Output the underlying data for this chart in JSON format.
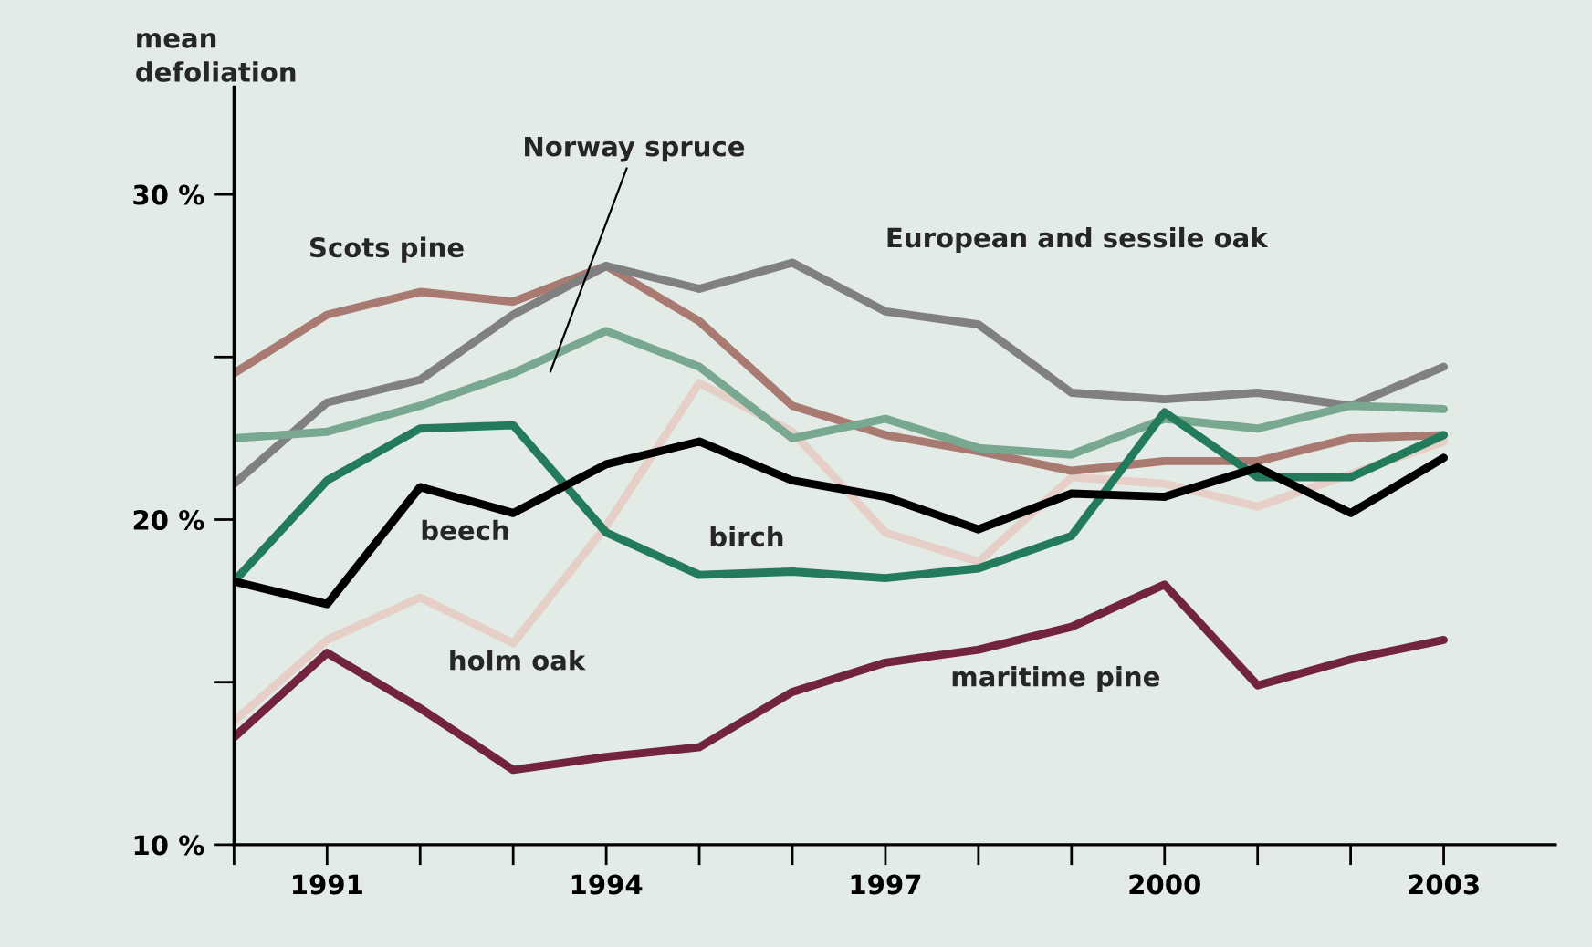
{
  "chart_data": {
    "type": "line",
    "ylabel": "mean\ndefoliation",
    "x": [
      1990,
      1991,
      1992,
      1993,
      1994,
      1995,
      1996,
      1997,
      1998,
      1999,
      2000,
      2001,
      2002,
      2003
    ],
    "xlim": [
      1990,
      2004.2
    ],
    "xticks": [
      {
        "value": 1990,
        "label": null
      },
      1991,
      {
        "value": 1992,
        "label": null
      },
      {
        "value": 1993,
        "label": null
      },
      1994,
      {
        "value": 1995,
        "label": null
      },
      {
        "value": 1996,
        "label": null
      },
      1997,
      {
        "value": 1998,
        "label": null
      },
      {
        "value": 1999,
        "label": null
      },
      2000,
      {
        "value": 2001,
        "label": null
      },
      {
        "value": 2002,
        "label": null
      },
      2003
    ],
    "ylim": [
      10,
      33.3
    ],
    "yticks": [
      {
        "value": 10,
        "label": "10 %"
      },
      {
        "value": 15,
        "label": null
      },
      {
        "value": 20,
        "label": "20 %"
      },
      {
        "value": 25,
        "label": null
      },
      {
        "value": 30,
        "label": "30 %"
      }
    ],
    "grid": false,
    "legend": false,
    "marker": "none",
    "line_style": "solid",
    "series": [
      {
        "name": "holm oak",
        "color": "#e6cfc7",
        "values": [
          13.8,
          16.3,
          17.6,
          16.2,
          19.8,
          24.2,
          22.7,
          19.6,
          18.7,
          21.3,
          21.1,
          20.4,
          21.4,
          22.4
        ]
      },
      {
        "name": "Scots pine",
        "color": "#a87a72",
        "values": [
          24.5,
          26.3,
          27.0,
          26.7,
          27.8,
          26.1,
          23.5,
          22.6,
          22.1,
          21.5,
          21.8,
          21.8,
          22.5,
          22.6
        ]
      },
      {
        "name": "European and sessile oak",
        "color": "#808080",
        "values": [
          21.1,
          23.6,
          24.3,
          26.3,
          27.8,
          27.1,
          27.9,
          26.4,
          26.0,
          23.9,
          23.7,
          23.9,
          23.5,
          24.7
        ]
      },
      {
        "name": "Norway spruce",
        "color": "#79a891",
        "values": [
          22.5,
          22.7,
          23.5,
          24.5,
          25.8,
          24.7,
          22.5,
          23.1,
          22.2,
          22.0,
          23.1,
          22.8,
          23.5,
          23.4
        ]
      },
      {
        "name": "birch",
        "color": "#237b5c",
        "values": [
          18.1,
          21.2,
          22.8,
          22.9,
          19.6,
          18.3,
          18.4,
          18.2,
          18.5,
          19.5,
          23.3,
          21.3,
          21.3,
          22.6
        ]
      },
      {
        "name": "beech",
        "color": "#000000",
        "values": [
          18.1,
          17.4,
          21.0,
          20.2,
          21.7,
          22.4,
          21.2,
          20.7,
          19.7,
          20.8,
          20.7,
          21.6,
          20.2,
          21.9
        ]
      },
      {
        "name": "maritime pine",
        "color": "#722340",
        "values": [
          13.3,
          15.9,
          14.2,
          12.3,
          12.7,
          13.0,
          14.7,
          15.6,
          16.0,
          16.7,
          18.0,
          14.9,
          15.7,
          16.3
        ]
      }
    ]
  }
}
